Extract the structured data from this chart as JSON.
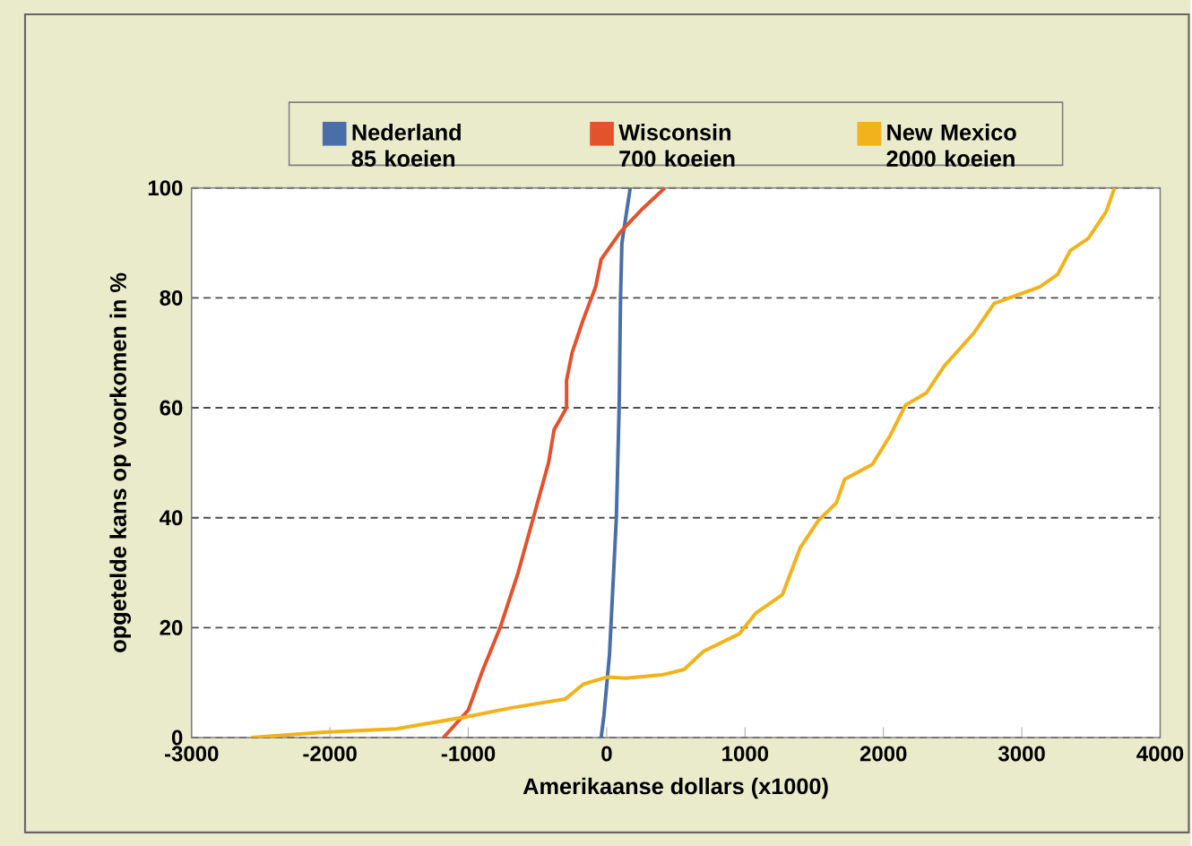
{
  "chart_data": {
    "type": "line",
    "xlabel": "Amerikaanse dollars (x1000)",
    "ylabel": "opgetelde kans op voorkomen in %",
    "xlim": [
      -3000,
      4000
    ],
    "ylim": [
      0,
      100
    ],
    "xticks": [
      -3000,
      -2000,
      -1000,
      0,
      1000,
      2000,
      3000,
      4000
    ],
    "yticks": [
      0,
      20,
      40,
      60,
      80,
      100
    ],
    "grid": "y",
    "legend": "top",
    "line_style": "solid",
    "series": [
      {
        "name": "Nederland 85 koeien",
        "color": "#4a6fa8",
        "x": [
          -40,
          -20,
          20,
          40,
          70,
          90,
          100,
          110,
          170
        ],
        "values": [
          0,
          4,
          15,
          25,
          40,
          60,
          80,
          90,
          100
        ]
      },
      {
        "name": "Wisconsin 700 koeien",
        "color": "#e2522c",
        "x": [
          -1180,
          -1000,
          -900,
          -770,
          -640,
          -530,
          -420,
          -380,
          -290,
          -290,
          -250,
          -170,
          -80,
          -40,
          100,
          250,
          420
        ],
        "values": [
          0,
          5,
          12,
          20,
          30,
          40,
          50,
          56,
          60,
          65,
          70,
          76,
          82,
          87,
          92,
          96,
          100
        ]
      },
      {
        "name": "New Mexico 2000 koeien",
        "color": "#f2b21c",
        "x": [
          -2570,
          -2040,
          -1520,
          -1010,
          -690,
          -300,
          -170,
          0,
          140,
          400,
          560,
          700,
          960,
          1080,
          1270,
          1400,
          1530,
          1660,
          1720,
          1920,
          2050,
          2160,
          2310,
          2440,
          2650,
          2800,
          3130,
          3260,
          3350,
          3480,
          3610,
          3670
        ],
        "values": [
          0,
          1,
          1.6,
          3.8,
          5.4,
          7,
          9.7,
          11,
          10.8,
          11.4,
          12.4,
          15.7,
          18.9,
          22.7,
          26,
          34.6,
          39.5,
          42.7,
          47,
          49.7,
          55,
          60.5,
          62.7,
          67.6,
          73.5,
          79,
          82,
          84.3,
          88.6,
          90.8,
          95.7,
          100
        ]
      }
    ]
  }
}
